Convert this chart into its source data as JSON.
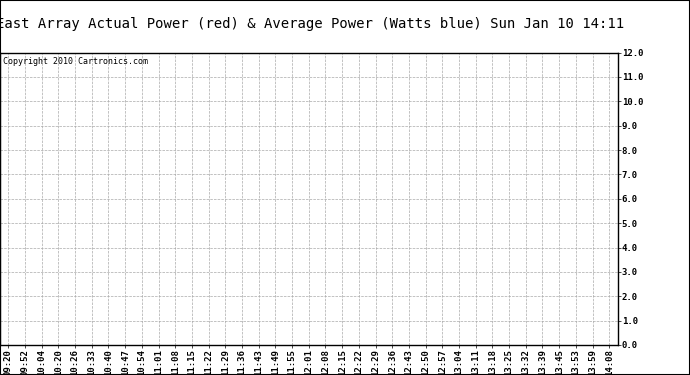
{
  "title": "East Array Actual Power (red) & Average Power (Watts blue) Sun Jan 10 14:11",
  "copyright_text": "Copyright 2010 Cartronics.com",
  "x_labels": [
    "09:20",
    "09:52",
    "10:04",
    "10:20",
    "10:26",
    "10:33",
    "10:40",
    "10:47",
    "10:54",
    "11:01",
    "11:08",
    "11:15",
    "11:22",
    "11:29",
    "11:36",
    "11:43",
    "11:49",
    "11:55",
    "12:01",
    "12:08",
    "12:15",
    "12:22",
    "12:29",
    "12:36",
    "12:43",
    "12:50",
    "12:57",
    "13:04",
    "13:11",
    "13:18",
    "13:25",
    "13:32",
    "13:39",
    "13:45",
    "13:53",
    "13:59",
    "14:08"
  ],
  "y_min": 0.0,
  "y_max": 12.0,
  "y_ticks": [
    0.0,
    1.0,
    2.0,
    3.0,
    4.0,
    5.0,
    6.0,
    7.0,
    8.0,
    9.0,
    10.0,
    11.0,
    12.0
  ],
  "grid_color": "#aaaaaa",
  "grid_linestyle": "--",
  "grid_linewidth": 0.5,
  "bg_color": "#ffffff",
  "title_fontsize": 10,
  "copyright_fontsize": 6,
  "tick_fontsize": 6.5,
  "border_color": "#000000"
}
